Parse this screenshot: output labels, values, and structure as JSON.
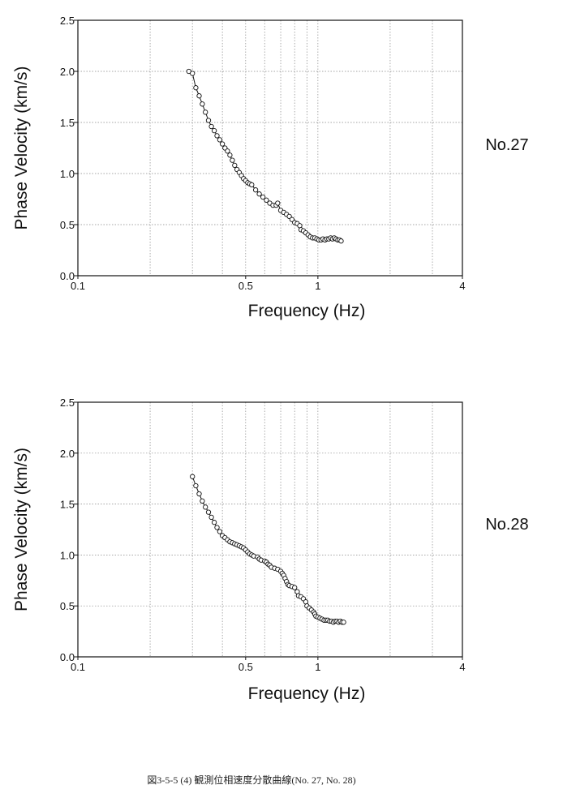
{
  "chart_data": [
    {
      "type": "scatter",
      "title": "",
      "station": "No.27",
      "xlabel": "Frequency (Hz)",
      "ylabel": "Phase Velocity (km/s)",
      "xscale": "log",
      "xlim": [
        0.1,
        4
      ],
      "ylim": [
        0,
        2.5
      ],
      "xticks": [
        {
          "v": 0.1,
          "label": "0.1"
        },
        {
          "v": 0.5,
          "label": "0.5"
        },
        {
          "v": 1,
          "label": "1"
        },
        {
          "v": 4,
          "label": "4"
        }
      ],
      "yticks": [
        {
          "v": 0,
          "label": "0.0"
        },
        {
          "v": 0.5,
          "label": "0.5"
        },
        {
          "v": 1,
          "label": "1.0"
        },
        {
          "v": 1.5,
          "label": "1.5"
        },
        {
          "v": 2,
          "label": "2.0"
        },
        {
          "v": 2.5,
          "label": "2.5"
        }
      ],
      "grid": true,
      "points": [
        [
          0.29,
          2.0
        ],
        [
          0.3,
          1.98
        ],
        [
          0.31,
          1.84
        ],
        [
          0.32,
          1.76
        ],
        [
          0.33,
          1.68
        ],
        [
          0.34,
          1.6
        ],
        [
          0.35,
          1.52
        ],
        [
          0.36,
          1.46
        ],
        [
          0.37,
          1.42
        ],
        [
          0.38,
          1.37
        ],
        [
          0.39,
          1.33
        ],
        [
          0.4,
          1.29
        ],
        [
          0.41,
          1.25
        ],
        [
          0.42,
          1.22
        ],
        [
          0.43,
          1.18
        ],
        [
          0.44,
          1.13
        ],
        [
          0.45,
          1.08
        ],
        [
          0.46,
          1.04
        ],
        [
          0.47,
          1.01
        ],
        [
          0.48,
          0.98
        ],
        [
          0.49,
          0.95
        ],
        [
          0.5,
          0.93
        ],
        [
          0.51,
          0.91
        ],
        [
          0.52,
          0.9
        ],
        [
          0.53,
          0.89
        ],
        [
          0.55,
          0.84
        ],
        [
          0.57,
          0.8
        ],
        [
          0.59,
          0.77
        ],
        [
          0.61,
          0.74
        ],
        [
          0.63,
          0.71
        ],
        [
          0.65,
          0.69
        ],
        [
          0.67,
          0.69
        ],
        [
          0.68,
          0.71
        ],
        [
          0.7,
          0.64
        ],
        [
          0.72,
          0.62
        ],
        [
          0.74,
          0.6
        ],
        [
          0.76,
          0.58
        ],
        [
          0.78,
          0.55
        ],
        [
          0.8,
          0.52
        ],
        [
          0.82,
          0.51
        ],
        [
          0.84,
          0.49
        ],
        [
          0.85,
          0.45
        ],
        [
          0.87,
          0.44
        ],
        [
          0.89,
          0.42
        ],
        [
          0.91,
          0.4
        ],
        [
          0.93,
          0.38
        ],
        [
          0.95,
          0.37
        ],
        [
          0.97,
          0.37
        ],
        [
          0.99,
          0.36
        ],
        [
          1.01,
          0.35
        ],
        [
          1.03,
          0.35
        ],
        [
          1.05,
          0.36
        ],
        [
          1.07,
          0.35
        ],
        [
          1.09,
          0.36
        ],
        [
          1.11,
          0.36
        ],
        [
          1.13,
          0.37
        ],
        [
          1.15,
          0.36
        ],
        [
          1.17,
          0.37
        ],
        [
          1.19,
          0.36
        ],
        [
          1.21,
          0.35
        ],
        [
          1.23,
          0.35
        ],
        [
          1.25,
          0.34
        ]
      ]
    },
    {
      "type": "scatter",
      "title": "",
      "station": "No.28",
      "xlabel": "Frequency (Hz)",
      "ylabel": "Phase Velocity (km/s)",
      "xscale": "log",
      "xlim": [
        0.1,
        4
      ],
      "ylim": [
        0,
        2.5
      ],
      "xticks": [
        {
          "v": 0.1,
          "label": "0.1"
        },
        {
          "v": 0.5,
          "label": "0.5"
        },
        {
          "v": 1,
          "label": "1"
        },
        {
          "v": 4,
          "label": "4"
        }
      ],
      "yticks": [
        {
          "v": 0,
          "label": "0.0"
        },
        {
          "v": 0.5,
          "label": "0.5"
        },
        {
          "v": 1,
          "label": "1.0"
        },
        {
          "v": 1.5,
          "label": "1.5"
        },
        {
          "v": 2,
          "label": "2.0"
        },
        {
          "v": 2.5,
          "label": "2.5"
        }
      ],
      "grid": true,
      "points": [
        [
          0.3,
          1.77
        ],
        [
          0.31,
          1.68
        ],
        [
          0.32,
          1.6
        ],
        [
          0.33,
          1.53
        ],
        [
          0.34,
          1.47
        ],
        [
          0.35,
          1.42
        ],
        [
          0.36,
          1.37
        ],
        [
          0.37,
          1.32
        ],
        [
          0.38,
          1.27
        ],
        [
          0.39,
          1.23
        ],
        [
          0.4,
          1.19
        ],
        [
          0.41,
          1.17
        ],
        [
          0.42,
          1.15
        ],
        [
          0.43,
          1.13
        ],
        [
          0.44,
          1.12
        ],
        [
          0.45,
          1.11
        ],
        [
          0.46,
          1.1
        ],
        [
          0.47,
          1.09
        ],
        [
          0.48,
          1.08
        ],
        [
          0.49,
          1.07
        ],
        [
          0.5,
          1.05
        ],
        [
          0.51,
          1.03
        ],
        [
          0.52,
          1.01
        ],
        [
          0.53,
          1.0
        ],
        [
          0.54,
          0.99
        ],
        [
          0.56,
          0.98
        ],
        [
          0.57,
          0.96
        ],
        [
          0.58,
          0.95
        ],
        [
          0.6,
          0.94
        ],
        [
          0.61,
          0.93
        ],
        [
          0.62,
          0.91
        ],
        [
          0.63,
          0.9
        ],
        [
          0.64,
          0.88
        ],
        [
          0.66,
          0.87
        ],
        [
          0.68,
          0.86
        ],
        [
          0.7,
          0.84
        ],
        [
          0.71,
          0.82
        ],
        [
          0.72,
          0.8
        ],
        [
          0.73,
          0.77
        ],
        [
          0.74,
          0.74
        ],
        [
          0.75,
          0.71
        ],
        [
          0.76,
          0.7
        ],
        [
          0.78,
          0.69
        ],
        [
          0.8,
          0.68
        ],
        [
          0.82,
          0.64
        ],
        [
          0.83,
          0.6
        ],
        [
          0.85,
          0.59
        ],
        [
          0.87,
          0.57
        ],
        [
          0.89,
          0.54
        ],
        [
          0.9,
          0.5
        ],
        [
          0.92,
          0.48
        ],
        [
          0.94,
          0.46
        ],
        [
          0.96,
          0.44
        ],
        [
          0.97,
          0.42
        ],
        [
          0.98,
          0.4
        ],
        [
          1.0,
          0.39
        ],
        [
          1.02,
          0.38
        ],
        [
          1.04,
          0.37
        ],
        [
          1.06,
          0.36
        ],
        [
          1.08,
          0.36
        ],
        [
          1.1,
          0.36
        ],
        [
          1.12,
          0.35
        ],
        [
          1.14,
          0.35
        ],
        [
          1.16,
          0.34
        ],
        [
          1.18,
          0.35
        ],
        [
          1.2,
          0.35
        ],
        [
          1.22,
          0.34
        ],
        [
          1.24,
          0.35
        ],
        [
          1.26,
          0.34
        ],
        [
          1.28,
          0.34
        ]
      ]
    }
  ],
  "caption": "図3-5-5 (4)  観測位相速度分散曲線(No. 27, No. 28)"
}
